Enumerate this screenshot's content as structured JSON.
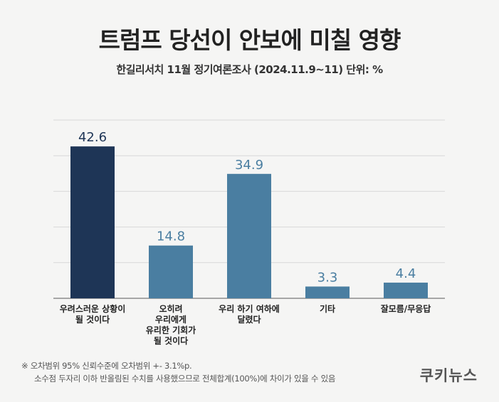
{
  "header": {
    "title": "트럼프 당선이 안보에 미칠 영향",
    "subtitle": "한길리서치 11월 정기여론조사 (2024.11.9~11) 단위: %"
  },
  "chart_data": {
    "type": "bar",
    "categories": [
      [
        "우려스러운 상황이",
        "될 것이다"
      ],
      [
        "오히려",
        "우리에게",
        "유리한 기회가",
        "될 것이다"
      ],
      [
        "우리 하기 여하에",
        "달렸다"
      ],
      [
        "기타"
      ],
      [
        "잘모름/무응답"
      ]
    ],
    "values": [
      42.6,
      14.8,
      34.9,
      3.3,
      4.4
    ],
    "value_labels": [
      "42.6",
      "14.8",
      "34.9",
      "3.3",
      "4.4"
    ],
    "ylim": [
      0,
      50
    ],
    "grid": true,
    "colors": [
      "#1e3556",
      "#4a7ea1",
      "#4a7ea1",
      "#4a7ea1",
      "#4a7ea1"
    ],
    "label_colors": [
      "#1e3556",
      "#4a7ea1",
      "#4a7ea1",
      "#4a7ea1",
      "#4a7ea1"
    ]
  },
  "footer": {
    "note_line1": "※ 오차범위 95% 신뢰수준에 오차범위 +- 3.1%p.",
    "note_line2": "소수점 두자리 이하 반올림된 수치를 사용했으므로 전체합계(100%)에 차이가 있을 수 있음",
    "logo": "쿠키뉴스"
  }
}
